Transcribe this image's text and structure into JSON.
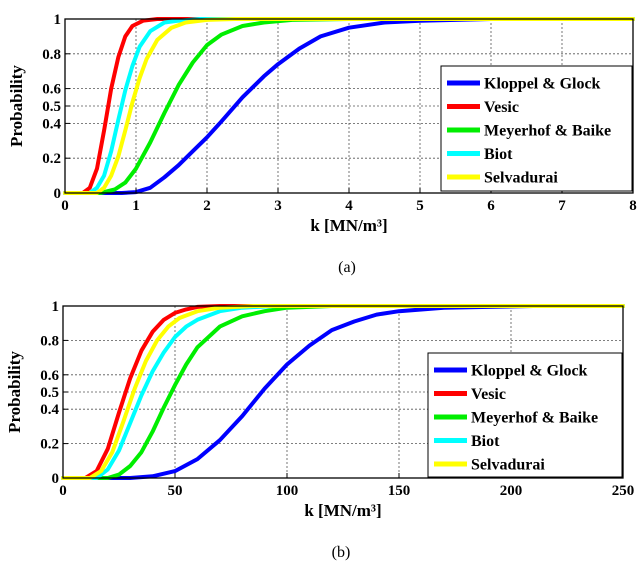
{
  "chart_data": [
    {
      "type": "line",
      "caption": "(a)",
      "xlabel": "k [MN/m³]",
      "ylabel": "Probability",
      "xlim": [
        0,
        8
      ],
      "ylim": [
        0,
        1
      ],
      "xticks": [
        "0",
        "1",
        "2",
        "3",
        "4",
        "5",
        "6",
        "7",
        "8"
      ],
      "xtick_values": [
        0,
        1,
        2,
        3,
        4,
        5,
        6,
        7,
        8
      ],
      "yticks": [
        "0",
        "0.2",
        "0.4",
        "0.5",
        "0.6",
        "0.8",
        "1"
      ],
      "ytick_values": [
        0,
        0.2,
        0.4,
        0.5,
        0.6,
        0.8,
        1
      ],
      "grid": true,
      "legend_position": "right",
      "series": [
        {
          "name": "Kloppel & Glock",
          "color": "#0000ff",
          "x": [
            0.0,
            0.5,
            0.8,
            1.0,
            1.2,
            1.4,
            1.6,
            1.8,
            2.0,
            2.2,
            2.5,
            2.8,
            3.0,
            3.3,
            3.6,
            4.0,
            4.5,
            5.0,
            5.5,
            6.0,
            8.0
          ],
          "y": [
            0.0,
            0.0,
            0.0,
            0.005,
            0.03,
            0.09,
            0.16,
            0.24,
            0.32,
            0.41,
            0.55,
            0.67,
            0.74,
            0.83,
            0.9,
            0.95,
            0.98,
            0.99,
            0.995,
            1.0,
            1.0
          ]
        },
        {
          "name": "Vesic",
          "color": "#ff0000",
          "x": [
            0.0,
            0.25,
            0.35,
            0.45,
            0.55,
            0.65,
            0.75,
            0.85,
            0.95,
            1.1,
            1.3,
            1.5,
            8.0
          ],
          "y": [
            0.0,
            0.0,
            0.03,
            0.14,
            0.36,
            0.6,
            0.78,
            0.9,
            0.96,
            0.99,
            1.0,
            1.0,
            1.0
          ]
        },
        {
          "name": "Meyerhof & Baike",
          "color": "#00ee00",
          "x": [
            0.0,
            0.5,
            0.7,
            0.85,
            1.0,
            1.2,
            1.4,
            1.6,
            1.8,
            2.0,
            2.2,
            2.5,
            2.8,
            3.2,
            4.0,
            8.0
          ],
          "y": [
            0.0,
            0.0,
            0.02,
            0.06,
            0.14,
            0.29,
            0.46,
            0.62,
            0.75,
            0.85,
            0.91,
            0.96,
            0.98,
            0.995,
            1.0,
            1.0
          ]
        },
        {
          "name": "Biot",
          "color": "#00ffff",
          "x": [
            0.0,
            0.35,
            0.45,
            0.55,
            0.65,
            0.75,
            0.85,
            0.95,
            1.05,
            1.2,
            1.4,
            1.6,
            1.9,
            2.2,
            8.0
          ],
          "y": [
            0.0,
            0.0,
            0.03,
            0.1,
            0.24,
            0.42,
            0.59,
            0.73,
            0.84,
            0.93,
            0.98,
            0.99,
            1.0,
            1.0,
            1.0
          ]
        },
        {
          "name": "Selvadurai",
          "color": "#ffff00",
          "x": [
            0.0,
            0.45,
            0.55,
            0.65,
            0.75,
            0.85,
            0.95,
            1.05,
            1.15,
            1.3,
            1.5,
            1.7,
            2.0,
            2.4,
            8.0
          ],
          "y": [
            0.0,
            0.0,
            0.03,
            0.1,
            0.21,
            0.36,
            0.52,
            0.66,
            0.77,
            0.88,
            0.95,
            0.98,
            0.995,
            1.0,
            1.0
          ]
        }
      ]
    },
    {
      "type": "line",
      "caption": "(b)",
      "xlabel": "k [MN/m³]",
      "ylabel": "Probability",
      "xlim": [
        0,
        250
      ],
      "ylim": [
        0,
        1
      ],
      "xticks": [
        "0",
        "50",
        "100",
        "150",
        "200",
        "250"
      ],
      "xtick_values": [
        0,
        50,
        100,
        150,
        200,
        250
      ],
      "yticks": [
        "0",
        "0.2",
        "0.4",
        "0.5",
        "0.6",
        "0.8",
        "1"
      ],
      "ytick_values": [
        0,
        0.2,
        0.4,
        0.5,
        0.6,
        0.8,
        1
      ],
      "grid": true,
      "legend_position": "right",
      "series": [
        {
          "name": "Kloppel & Glock",
          "color": "#0000ff",
          "x": [
            0,
            30,
            40,
            50,
            60,
            70,
            80,
            90,
            100,
            110,
            120,
            130,
            140,
            150,
            170,
            190,
            210,
            250
          ],
          "y": [
            0.0,
            0.0,
            0.01,
            0.04,
            0.11,
            0.22,
            0.36,
            0.52,
            0.66,
            0.77,
            0.86,
            0.91,
            0.95,
            0.97,
            0.99,
            0.995,
            1.0,
            1.0
          ]
        },
        {
          "name": "Vesic",
          "color": "#ff0000",
          "x": [
            0,
            10,
            15,
            20,
            25,
            30,
            35,
            40,
            45,
            50,
            55,
            60,
            70,
            250
          ],
          "y": [
            0.0,
            0.0,
            0.04,
            0.17,
            0.38,
            0.58,
            0.74,
            0.85,
            0.92,
            0.96,
            0.98,
            0.995,
            1.0,
            1.0
          ]
        },
        {
          "name": "Meyerhof & Baike",
          "color": "#00ee00",
          "x": [
            0,
            20,
            25,
            30,
            35,
            40,
            45,
            50,
            55,
            60,
            70,
            80,
            90,
            100,
            120,
            250
          ],
          "y": [
            0.0,
            0.0,
            0.02,
            0.07,
            0.15,
            0.27,
            0.41,
            0.54,
            0.66,
            0.76,
            0.88,
            0.94,
            0.97,
            0.99,
            1.0,
            1.0
          ]
        },
        {
          "name": "Biot",
          "color": "#00ffff",
          "x": [
            0,
            15,
            20,
            25,
            30,
            35,
            40,
            45,
            50,
            55,
            60,
            70,
            80,
            95,
            250
          ],
          "y": [
            0.0,
            0.0,
            0.05,
            0.16,
            0.32,
            0.48,
            0.62,
            0.73,
            0.82,
            0.88,
            0.92,
            0.97,
            0.99,
            1.0,
            1.0
          ]
        },
        {
          "name": "Selvadurai",
          "color": "#ffff00",
          "x": [
            0,
            12,
            17,
            22,
            27,
            32,
            37,
            42,
            47,
            52,
            60,
            70,
            85,
            250
          ],
          "y": [
            0.0,
            0.0,
            0.04,
            0.15,
            0.33,
            0.52,
            0.68,
            0.8,
            0.88,
            0.93,
            0.97,
            0.99,
            1.0,
            1.0
          ]
        }
      ]
    }
  ]
}
